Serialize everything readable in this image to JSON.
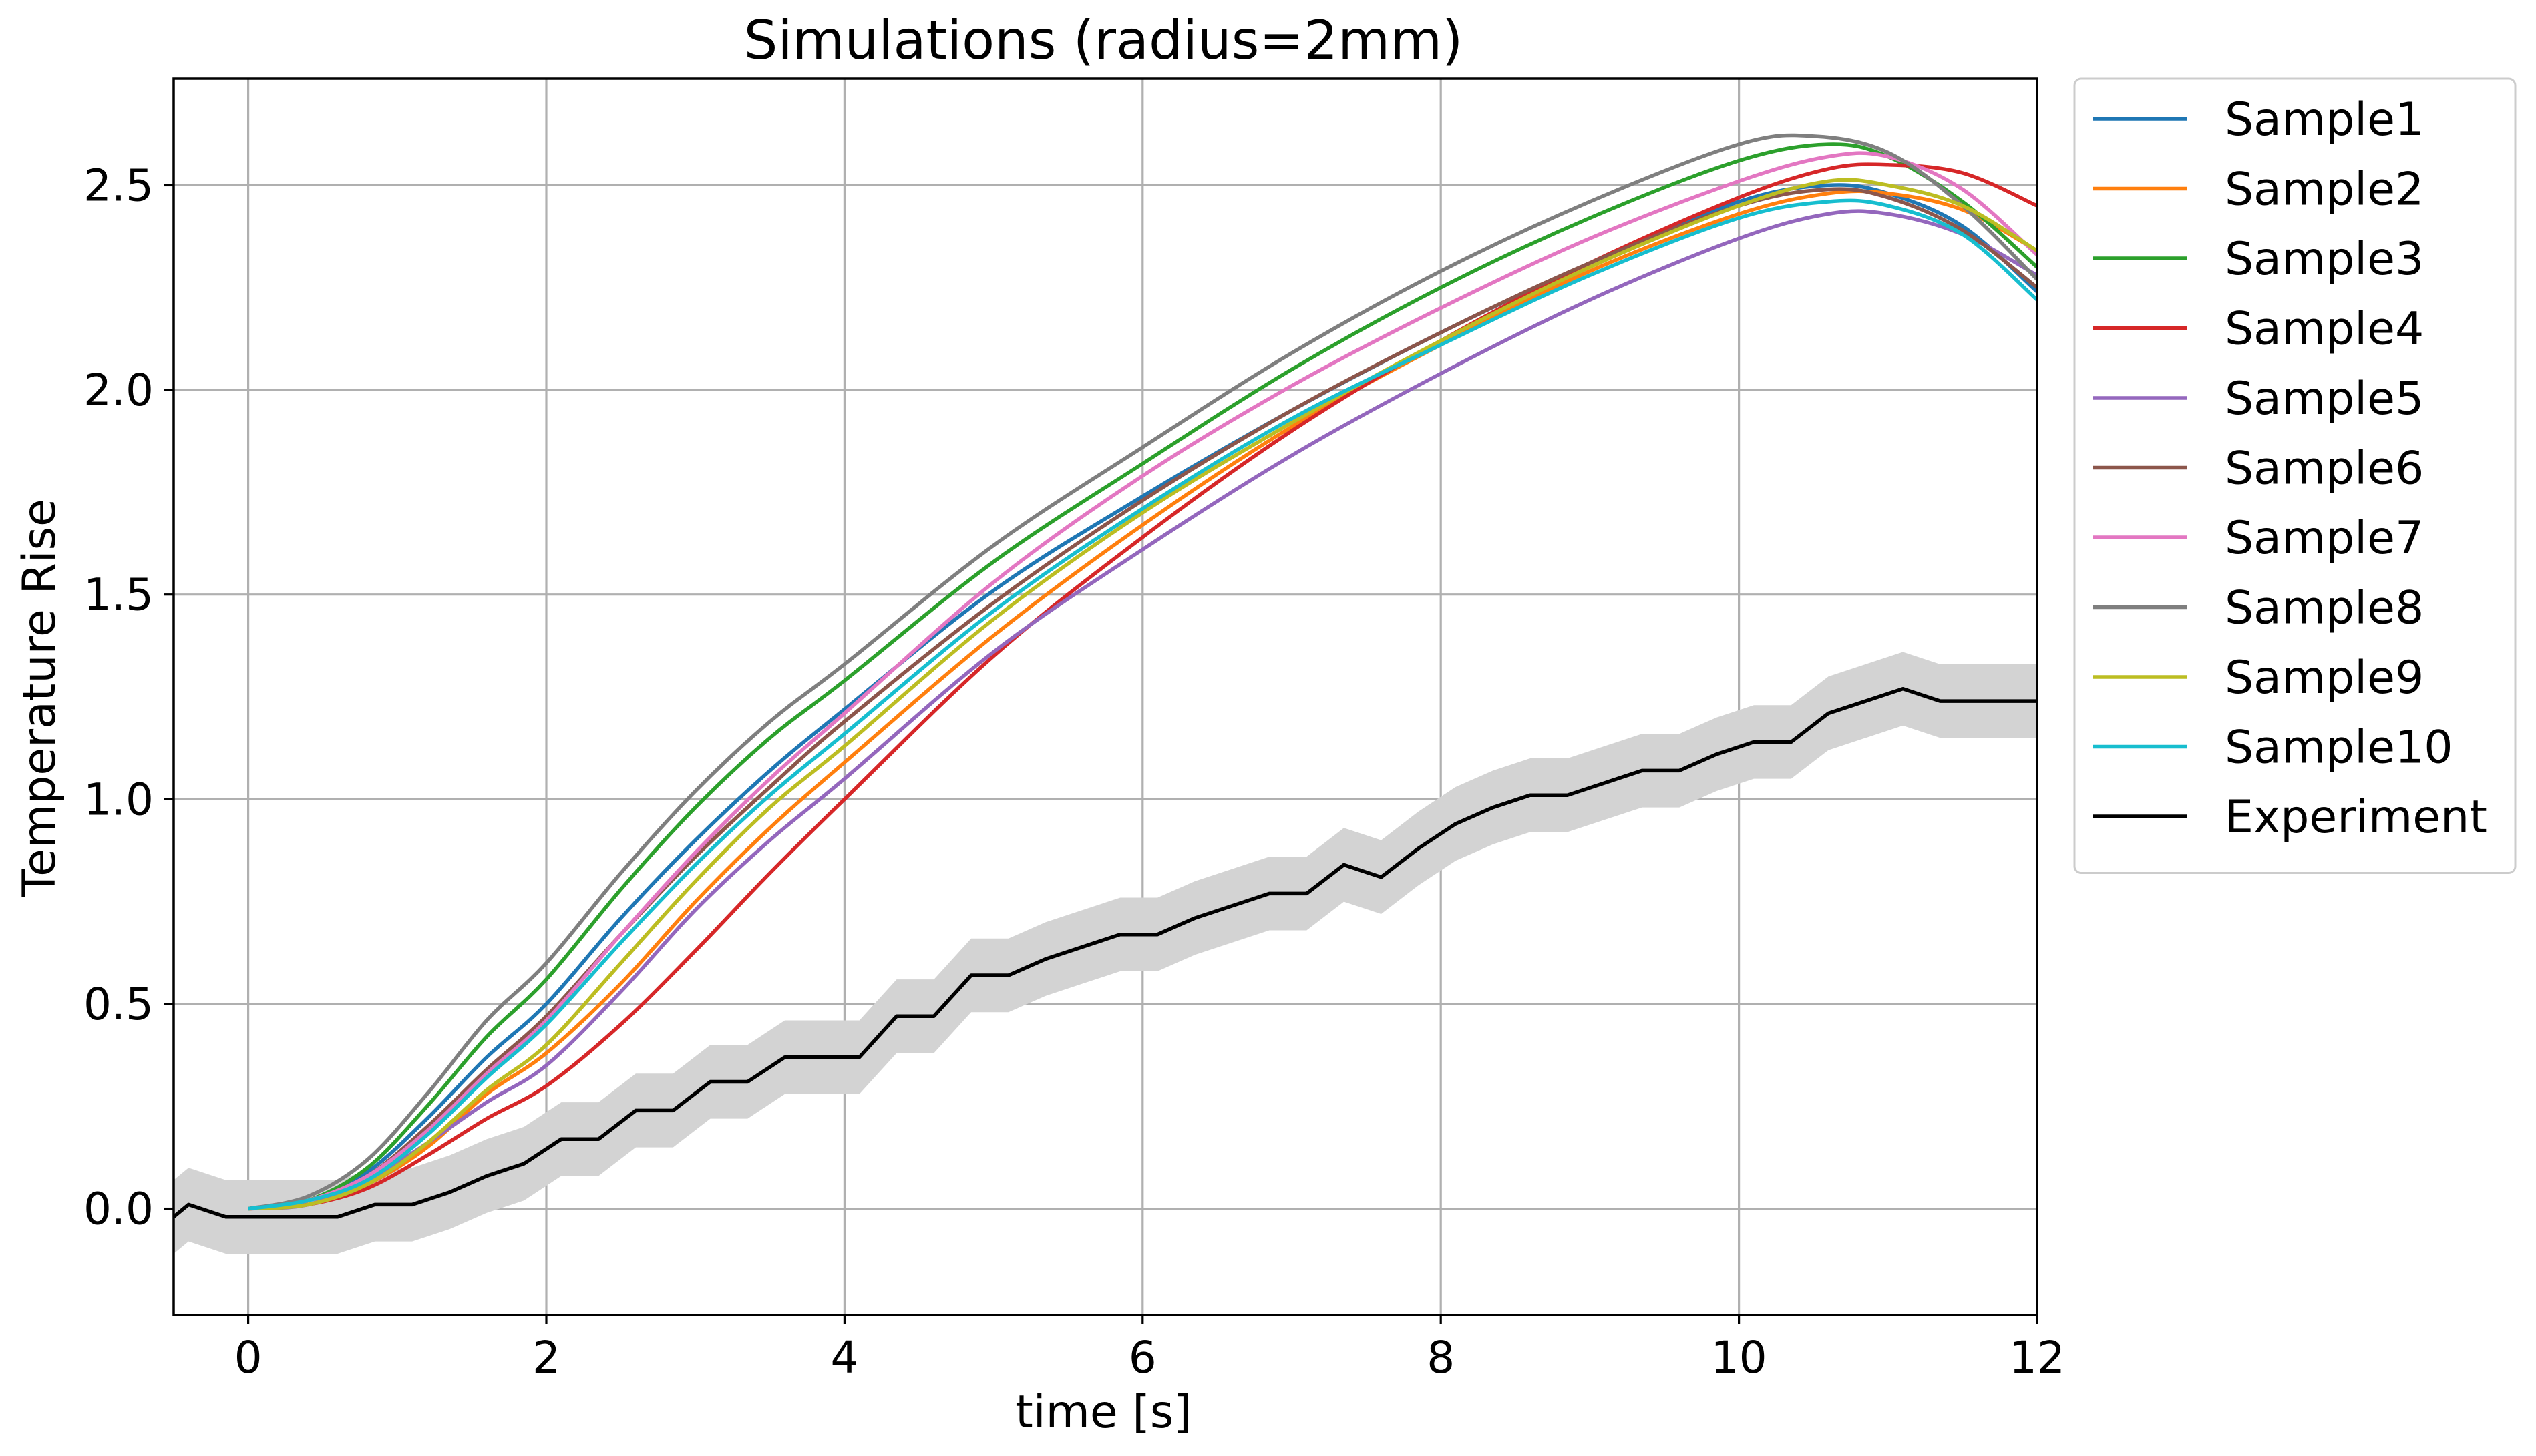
{
  "chart_data": {
    "type": "line",
    "title": "Simulations (radius=2mm)",
    "xlabel": "time [s]",
    "ylabel": "Temperature Rise",
    "xlim": [
      -0.5,
      12
    ],
    "ylim": [
      -0.26,
      2.76
    ],
    "xticks": [
      0,
      2,
      4,
      6,
      8,
      10,
      12
    ],
    "yticks": [
      0.0,
      0.5,
      1.0,
      1.5,
      2.0,
      2.5
    ],
    "xtick_labels": [
      "0",
      "2",
      "4",
      "6",
      "8",
      "10",
      "12"
    ],
    "ytick_labels": [
      "0.0",
      "0.5",
      "1.0",
      "1.5",
      "2.0",
      "2.5"
    ],
    "grid": true,
    "legend_position": "outside-right-top",
    "colors": {
      "Sample1": "#1f77b4",
      "Sample2": "#ff7f0e",
      "Sample3": "#2ca02c",
      "Sample4": "#d62728",
      "Sample5": "#9467bd",
      "Sample6": "#8c564b",
      "Sample7": "#e377c2",
      "Sample8": "#7f7f7f",
      "Sample9": "#bcbd22",
      "Sample10": "#17becf",
      "Experiment": "#000000",
      "band": "#d3d3d3"
    },
    "series": [
      {
        "name": "Sample1",
        "x": [
          0,
          0.4,
          0.8,
          1.2,
          1.6,
          2,
          2.5,
          3,
          3.5,
          4,
          5,
          6,
          7,
          8,
          9,
          10,
          10.6,
          11,
          11.5,
          12
        ],
        "y": [
          0,
          0.02,
          0.09,
          0.22,
          0.37,
          0.5,
          0.71,
          0.9,
          1.07,
          1.22,
          1.51,
          1.74,
          1.95,
          2.14,
          2.31,
          2.46,
          2.5,
          2.48,
          2.4,
          2.24
        ]
      },
      {
        "name": "Sample2",
        "x": [
          0,
          0.4,
          0.8,
          1.2,
          1.6,
          2,
          2.5,
          3,
          3.5,
          4,
          5,
          6,
          7,
          8,
          9,
          10,
          10.6,
          11,
          11.5,
          12
        ],
        "y": [
          0,
          0.01,
          0.06,
          0.15,
          0.28,
          0.38,
          0.55,
          0.75,
          0.93,
          1.09,
          1.4,
          1.67,
          1.91,
          2.11,
          2.29,
          2.43,
          2.48,
          2.48,
          2.44,
          2.34
        ]
      },
      {
        "name": "Sample3",
        "x": [
          0,
          0.4,
          0.8,
          1.2,
          1.6,
          2,
          2.5,
          3,
          3.5,
          4,
          5,
          6,
          7,
          8,
          9,
          10,
          10.6,
          11,
          11.5,
          12
        ],
        "y": [
          0,
          0.02,
          0.1,
          0.25,
          0.42,
          0.56,
          0.78,
          0.98,
          1.15,
          1.29,
          1.58,
          1.82,
          2.05,
          2.25,
          2.42,
          2.56,
          2.6,
          2.57,
          2.46,
          2.3
        ]
      },
      {
        "name": "Sample4",
        "x": [
          0,
          0.4,
          0.8,
          1.2,
          1.6,
          2,
          2.5,
          3,
          3.5,
          4,
          5,
          6,
          7,
          8,
          9,
          10,
          10.6,
          11,
          11.5,
          12
        ],
        "y": [
          0,
          0.01,
          0.05,
          0.13,
          0.22,
          0.3,
          0.45,
          0.63,
          0.82,
          1.0,
          1.35,
          1.64,
          1.9,
          2.12,
          2.31,
          2.47,
          2.54,
          2.55,
          2.53,
          2.45
        ]
      },
      {
        "name": "Sample5",
        "x": [
          0,
          0.4,
          0.8,
          1.2,
          1.6,
          2,
          2.5,
          3,
          3.5,
          4,
          5,
          6,
          7,
          8,
          9,
          10,
          10.6,
          11,
          11.5,
          12
        ],
        "y": [
          0,
          0.01,
          0.07,
          0.16,
          0.26,
          0.35,
          0.53,
          0.73,
          0.9,
          1.05,
          1.36,
          1.61,
          1.84,
          2.04,
          2.22,
          2.37,
          2.43,
          2.43,
          2.38,
          2.28
        ]
      },
      {
        "name": "Sample6",
        "x": [
          0,
          0.4,
          0.8,
          1.2,
          1.6,
          2,
          2.5,
          3,
          3.5,
          4,
          5,
          6,
          7,
          8,
          9,
          10,
          10.6,
          11,
          11.5,
          12
        ],
        "y": [
          0,
          0.02,
          0.08,
          0.2,
          0.34,
          0.47,
          0.67,
          0.86,
          1.03,
          1.19,
          1.48,
          1.73,
          1.95,
          2.14,
          2.31,
          2.45,
          2.49,
          2.47,
          2.39,
          2.25
        ]
      },
      {
        "name": "Sample7",
        "x": [
          0,
          0.4,
          0.8,
          1.2,
          1.6,
          2,
          2.5,
          3,
          3.5,
          4,
          5,
          6,
          7,
          8,
          9,
          10,
          10.6,
          11,
          11.5,
          12
        ],
        "y": [
          0,
          0.02,
          0.08,
          0.19,
          0.33,
          0.46,
          0.67,
          0.87,
          1.05,
          1.21,
          1.53,
          1.79,
          2.01,
          2.2,
          2.37,
          2.51,
          2.57,
          2.57,
          2.49,
          2.33
        ]
      },
      {
        "name": "Sample8",
        "x": [
          0,
          0.4,
          0.8,
          1.2,
          1.6,
          2,
          2.5,
          3,
          3.5,
          4,
          5,
          6,
          7,
          8,
          9,
          10,
          10.5,
          11,
          11.5,
          12
        ],
        "y": [
          0,
          0.03,
          0.12,
          0.28,
          0.46,
          0.6,
          0.82,
          1.02,
          1.19,
          1.33,
          1.62,
          1.86,
          2.09,
          2.29,
          2.46,
          2.6,
          2.62,
          2.58,
          2.45,
          2.27
        ]
      },
      {
        "name": "Sample9",
        "x": [
          0,
          0.4,
          0.8,
          1.2,
          1.6,
          2,
          2.5,
          3,
          3.5,
          4,
          5,
          6,
          7,
          8,
          9,
          10,
          10.6,
          11,
          11.5,
          12
        ],
        "y": [
          0,
          0.01,
          0.06,
          0.16,
          0.29,
          0.4,
          0.6,
          0.8,
          0.98,
          1.13,
          1.44,
          1.7,
          1.92,
          2.12,
          2.3,
          2.45,
          2.51,
          2.5,
          2.45,
          2.34
        ]
      },
      {
        "name": "Sample10",
        "x": [
          0,
          0.4,
          0.8,
          1.2,
          1.6,
          2,
          2.5,
          3,
          3.5,
          4,
          5,
          6,
          7,
          8,
          9,
          10,
          10.6,
          11,
          11.5,
          12
        ],
        "y": [
          0,
          0.02,
          0.07,
          0.18,
          0.32,
          0.45,
          0.65,
          0.84,
          1.01,
          1.16,
          1.46,
          1.71,
          1.93,
          2.11,
          2.28,
          2.42,
          2.46,
          2.45,
          2.38,
          2.22
        ]
      },
      {
        "name": "Experiment",
        "x": [
          -0.5,
          -0.4,
          -0.15,
          0.0,
          0.6,
          0.85,
          1.1,
          1.35,
          1.6,
          1.85,
          2.1,
          2.35,
          2.6,
          2.85,
          3.1,
          3.35,
          3.6,
          3.85,
          4.1,
          4.35,
          4.6,
          4.85,
          5.1,
          5.35,
          5.6,
          5.85,
          6.1,
          6.35,
          6.6,
          6.85,
          7.1,
          7.35,
          7.6,
          7.85,
          8.1,
          8.35,
          8.6,
          8.85,
          9.1,
          9.35,
          9.6,
          9.85,
          10.1,
          10.35,
          10.6,
          10.85,
          11.1,
          11.35,
          11.6,
          12
        ],
        "y": [
          -0.02,
          0.01,
          -0.02,
          -0.02,
          -0.02,
          0.01,
          0.01,
          0.04,
          0.08,
          0.11,
          0.17,
          0.17,
          0.24,
          0.24,
          0.31,
          0.31,
          0.37,
          0.37,
          0.37,
          0.47,
          0.47,
          0.57,
          0.57,
          0.61,
          0.64,
          0.67,
          0.67,
          0.71,
          0.74,
          0.77,
          0.77,
          0.84,
          0.81,
          0.88,
          0.94,
          0.98,
          1.01,
          1.01,
          1.04,
          1.07,
          1.07,
          1.11,
          1.14,
          1.14,
          1.21,
          1.24,
          1.27,
          1.24,
          1.24,
          1.24
        ]
      }
    ],
    "band": {
      "series": "Experiment",
      "half_width": 0.09
    },
    "legend": [
      "Sample1",
      "Sample2",
      "Sample3",
      "Sample4",
      "Sample5",
      "Sample6",
      "Sample7",
      "Sample8",
      "Sample9",
      "Sample10",
      "Experiment"
    ]
  }
}
